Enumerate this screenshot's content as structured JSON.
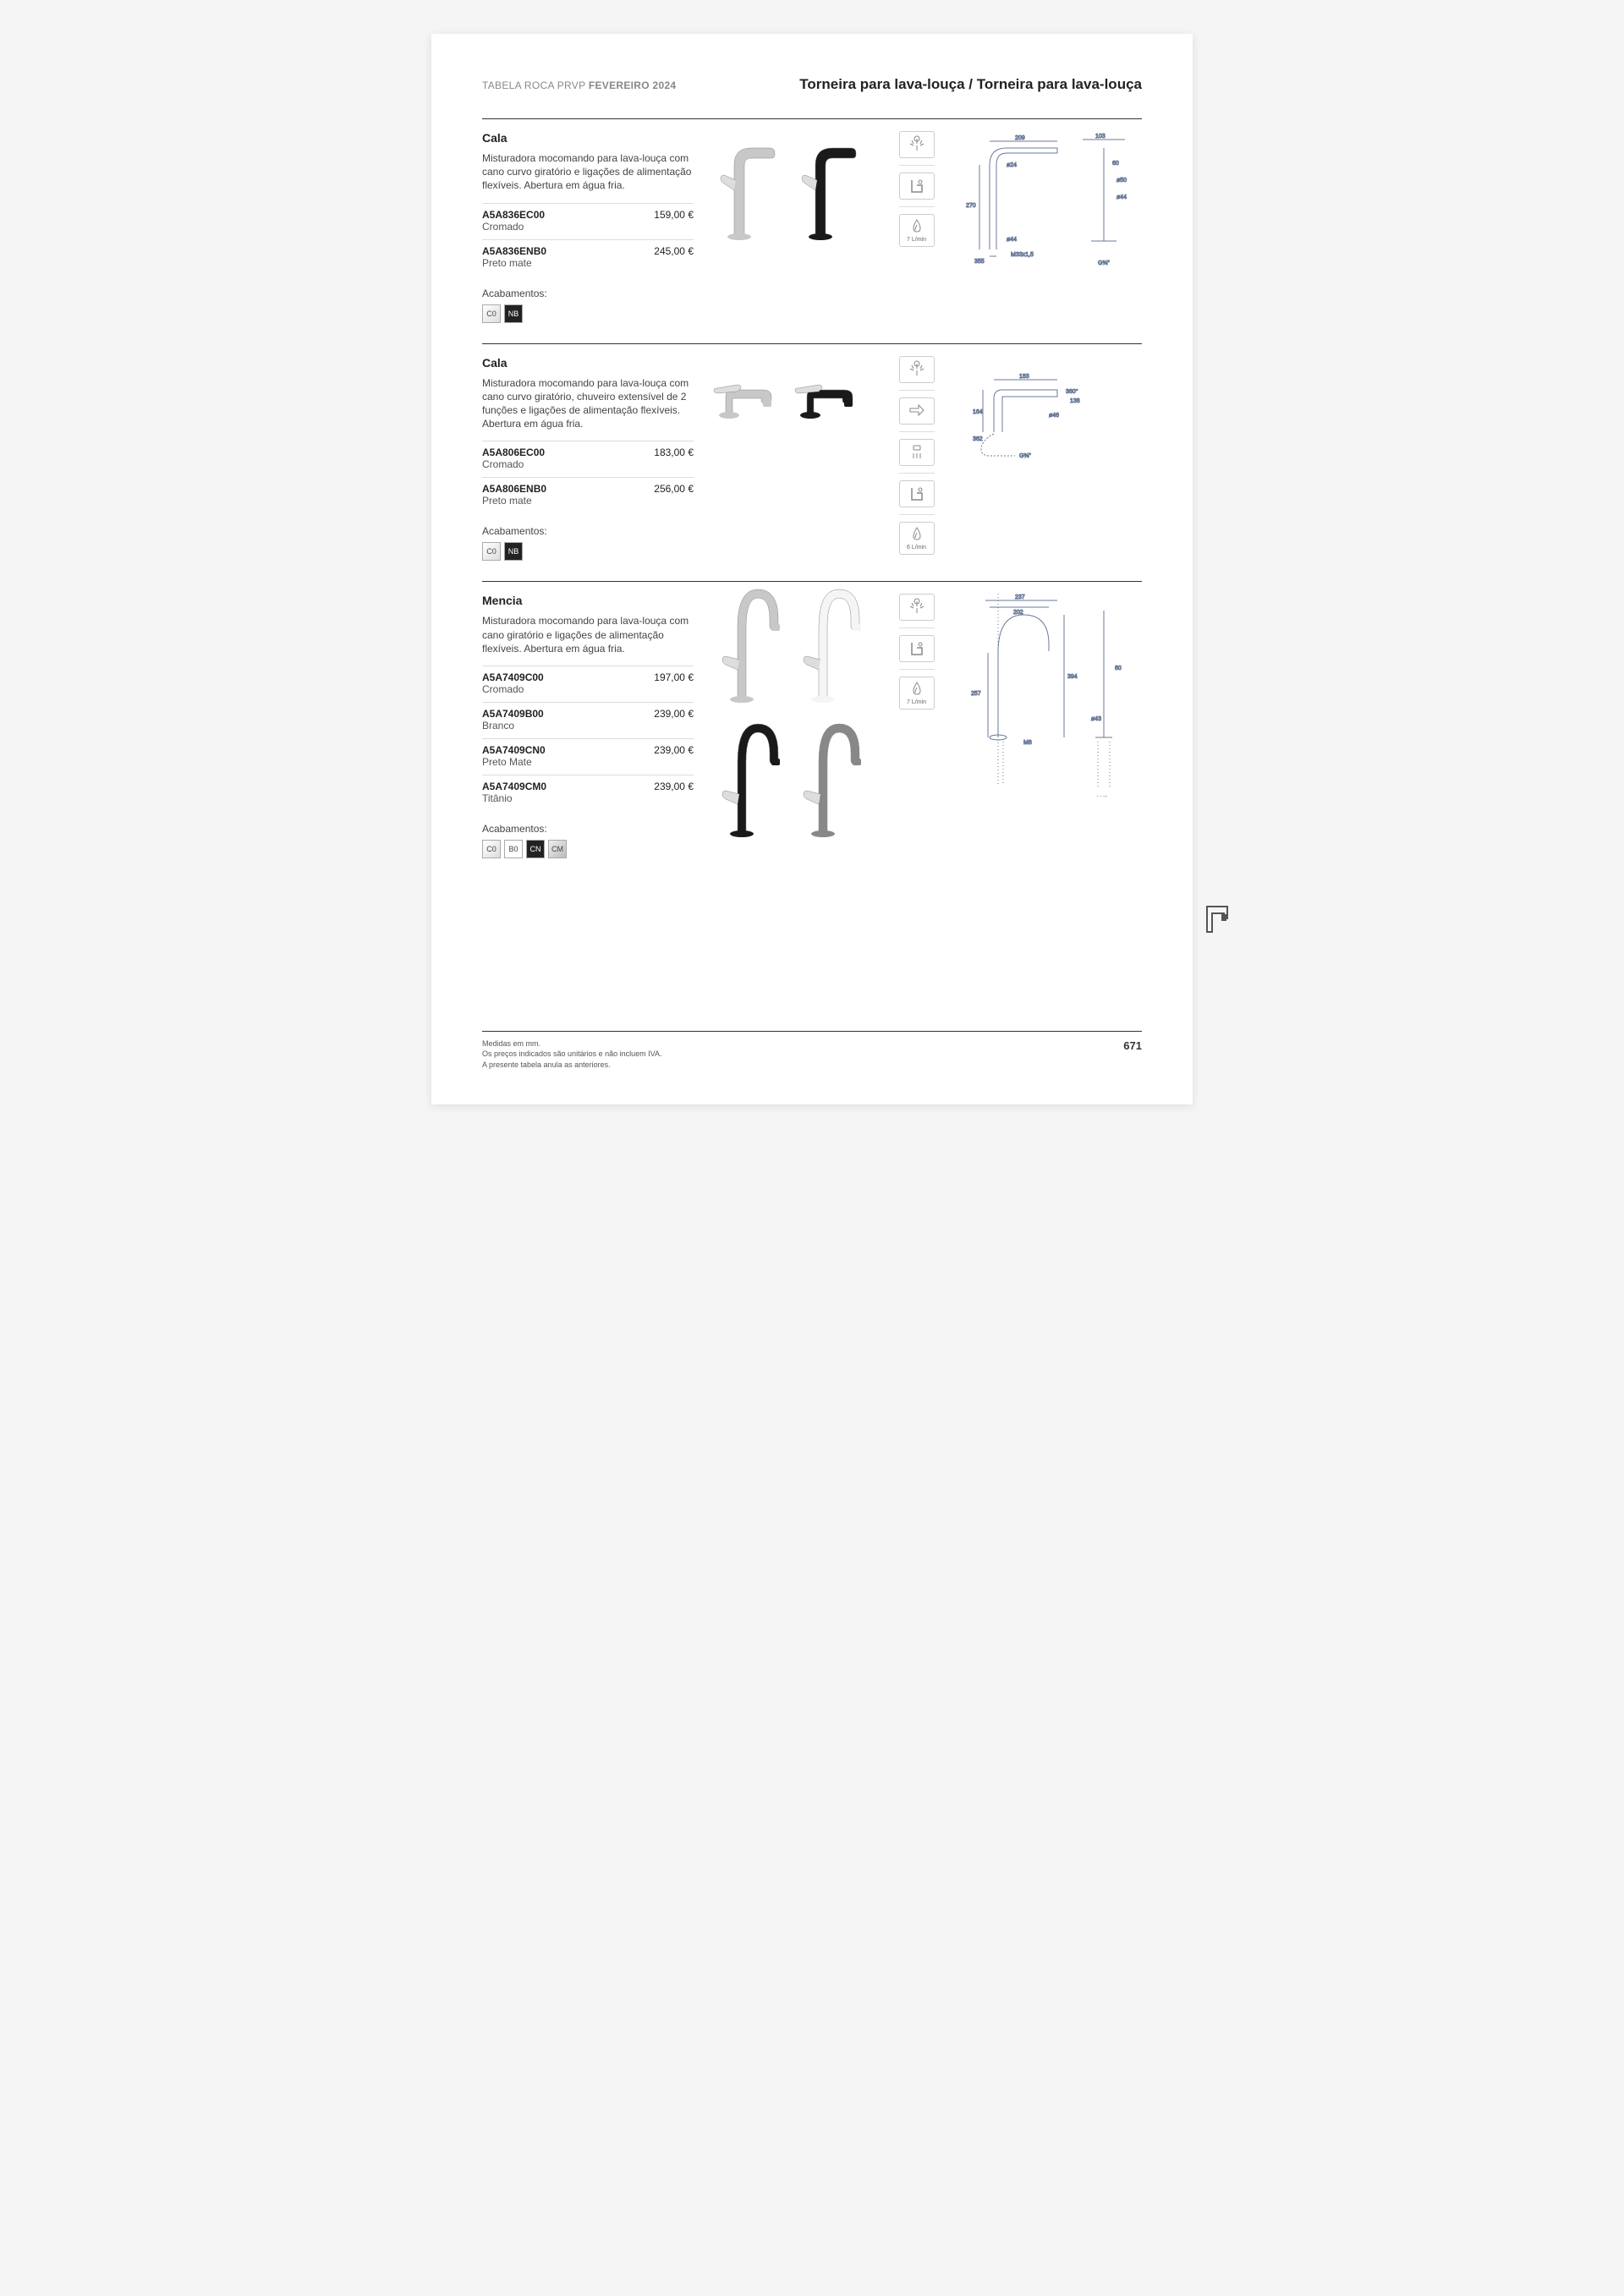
{
  "header": {
    "leftPrefix": "TABELA ROCA PRVP ",
    "leftBold": "FEVEREIRO 2024",
    "right": "Torneira para lava-louça / Torneira para lava-louça"
  },
  "acabamentosLabel": "Acabamentos:",
  "sections": [
    {
      "name": "Cala",
      "description": "Misturadora mocomando para lava-louça com cano curvo giratório e ligações de alimentação flexíveis. Abertura em água fria.",
      "variants": [
        {
          "code": "A5A836EC00",
          "finish": "Cromado",
          "price": "159,00 €"
        },
        {
          "code": "A5A836ENB0",
          "finish": "Preto mate",
          "price": "245,00 €"
        }
      ],
      "swatches": [
        {
          "label": "C0",
          "style": "light"
        },
        {
          "label": "NB",
          "style": "dark"
        }
      ],
      "faucets": [
        {
          "type": "tall-curve",
          "color": "#c8c8c8"
        },
        {
          "type": "tall-curve",
          "color": "#1a1a1a"
        }
      ],
      "icons": [
        {
          "kind": "spray",
          "label": ""
        },
        {
          "kind": "clean",
          "label": ""
        },
        {
          "kind": "flow",
          "label": "7 L/min"
        }
      ],
      "techDims": {
        "w": "209",
        "w2": "103",
        "h": "270",
        "base": "355",
        "d": "ø24",
        "d2": "ø44",
        "d3": "ø50",
        "thread": "M33x1,5",
        "ext": "60",
        "conn": "G⅜\""
      }
    },
    {
      "name": "Cala",
      "description": "Misturadora mocomando para lava-louça com cano curvo giratório, chuveiro extensível de 2 funções e ligações de alimentação flexíveis. Abertura em água fria.",
      "variants": [
        {
          "code": "A5A806EC00",
          "finish": "Cromado",
          "price": "183,00 €"
        },
        {
          "code": "A5A806ENB0",
          "finish": "Preto mate",
          "price": "256,00 €"
        }
      ],
      "swatches": [
        {
          "label": "C0",
          "style": "light"
        },
        {
          "label": "NB",
          "style": "dark"
        }
      ],
      "faucets": [
        {
          "type": "low-pullout",
          "color": "#c8c8c8"
        },
        {
          "type": "low-pullout",
          "color": "#1a1a1a"
        }
      ],
      "icons": [
        {
          "kind": "spray",
          "label": ""
        },
        {
          "kind": "pullout",
          "label": ""
        },
        {
          "kind": "shower",
          "label": ""
        },
        {
          "kind": "clean",
          "label": ""
        },
        {
          "kind": "flow",
          "label": "6 L/min"
        }
      ],
      "techDims": {
        "w": "183",
        "h": "164",
        "w2": "138",
        "rot": "360°",
        "d": "ø46",
        "base": "362",
        "conn": "G⅜\""
      }
    },
    {
      "name": "Mencia",
      "description": "Misturadora mocomando para lava-louça com cano giratório e ligações de alimentação flexíveis. Abertura em água fria.",
      "variants": [
        {
          "code": "A5A7409C00",
          "finish": "Cromado",
          "price": "197,00 €"
        },
        {
          "code": "A5A7409B00",
          "finish": "Branco",
          "price": "239,00 €"
        },
        {
          "code": "A5A7409CN0",
          "finish": "Preto Mate",
          "price": "239,00 €"
        },
        {
          "code": "A5A7409CM0",
          "finish": "Titânio",
          "price": "239,00 €"
        }
      ],
      "swatches": [
        {
          "label": "C0",
          "style": "light"
        },
        {
          "label": "B0",
          "style": "white"
        },
        {
          "label": "CN",
          "style": "dark"
        },
        {
          "label": "CM",
          "style": "grey"
        }
      ],
      "faucets": [
        {
          "type": "gooseneck",
          "color": "#c8c8c8"
        },
        {
          "type": "gooseneck",
          "color": "#f5f5f5"
        },
        {
          "type": "gooseneck",
          "color": "#1a1a1a"
        },
        {
          "type": "gooseneck",
          "color": "#888888"
        }
      ],
      "icons": [
        {
          "kind": "spray",
          "label": ""
        },
        {
          "kind": "clean",
          "label": ""
        },
        {
          "kind": "flow",
          "label": "7 L/min"
        }
      ],
      "techDims": {
        "w": "237",
        "w2": "202",
        "h": "394",
        "side": "257",
        "ext": "80",
        "d": "ø43",
        "thread": "M8",
        "conn": "G⅜\""
      }
    }
  ],
  "footer": {
    "line1": "Medidas em mm.",
    "line2": "Os preços indicados são unitários e não incluem IVA.",
    "line3": "A presente tabela anula as anteriores.",
    "pageNum": "671"
  }
}
